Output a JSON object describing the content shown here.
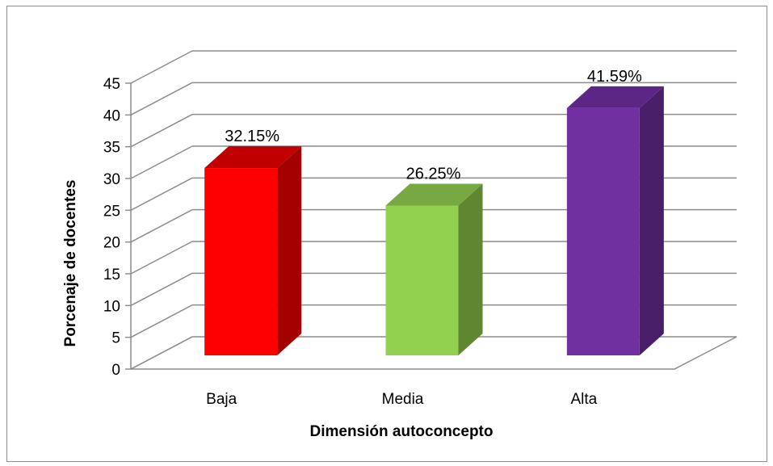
{
  "chart_data": {
    "type": "bar",
    "style": "3d-column",
    "categories": [
      "Baja",
      "Media",
      "Alta"
    ],
    "values": [
      32.15,
      26.25,
      41.59
    ],
    "data_labels": [
      "32.15%",
      "26.25%",
      "41.59%"
    ],
    "colors": [
      "#ff0000",
      "#92d050",
      "#7030a0"
    ],
    "side_colors": [
      "#a50000",
      "#5f8731",
      "#481e68"
    ],
    "top_colors": [
      "#c00000",
      "#77a842",
      "#5c2685"
    ],
    "xlabel": "Dimensión autoconcepto",
    "ylabel": "Porcenaje de docentes",
    "ylim": [
      0,
      45
    ],
    "yticks": [
      0,
      5,
      10,
      15,
      20,
      25,
      30,
      35,
      40,
      45
    ],
    "grid": true,
    "legend": "none"
  }
}
